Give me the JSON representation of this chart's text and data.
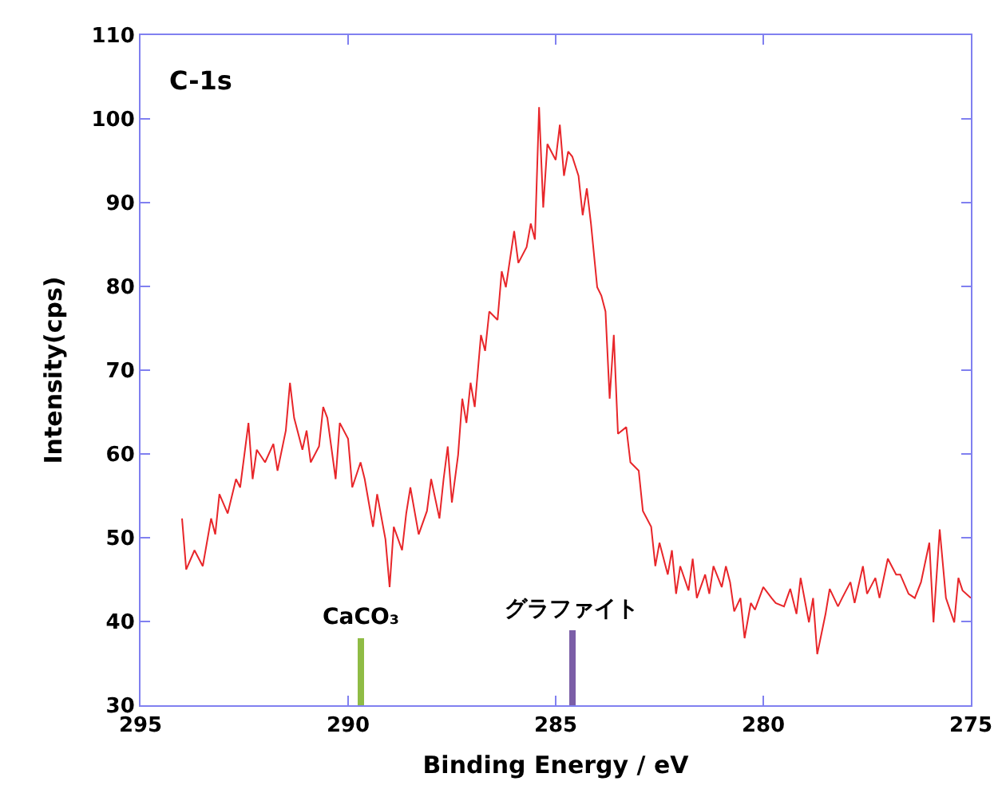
{
  "chart_data": {
    "type": "line",
    "title": "C-1s",
    "xlabel": "Binding Energy / eV",
    "ylabel": "Intensity(cps)",
    "xlim": [
      295,
      275
    ],
    "xticks": [
      295,
      290,
      285,
      280,
      275
    ],
    "ylim": [
      30,
      110
    ],
    "yticks": [
      30,
      40,
      50,
      60,
      70,
      80,
      90,
      100,
      110
    ],
    "grid": false,
    "legend": false,
    "marker": "none",
    "line_style": "solid",
    "series": [
      {
        "color": "#e8262a",
        "x": [
          294.0,
          293.9,
          293.7,
          293.5,
          293.3,
          293.2,
          293.1,
          292.9,
          292.7,
          292.6,
          292.4,
          292.3,
          292.2,
          292.0,
          291.8,
          291.7,
          291.5,
          291.4,
          291.3,
          291.1,
          291.0,
          290.9,
          290.7,
          290.6,
          290.5,
          290.3,
          290.2,
          290.0,
          289.9,
          289.7,
          289.6,
          289.4,
          289.3,
          289.1,
          289.0,
          288.9,
          288.7,
          288.6,
          288.5,
          288.3,
          288.1,
          288.0,
          287.8,
          287.7,
          287.6,
          287.5,
          287.35,
          287.25,
          287.15,
          287.05,
          286.95,
          286.8,
          286.7,
          286.6,
          286.4,
          286.3,
          286.2,
          286.0,
          285.9,
          285.7,
          285.6,
          285.5,
          285.4,
          285.3,
          285.2,
          285.0,
          284.9,
          284.8,
          284.7,
          284.6,
          284.45,
          284.35,
          284.25,
          284.15,
          284.0,
          283.9,
          283.8,
          283.7,
          283.6,
          283.5,
          283.3,
          283.2,
          283.0,
          282.9,
          282.7,
          282.6,
          282.5,
          282.3,
          282.2,
          282.1,
          282.0,
          281.8,
          281.7,
          281.6,
          281.4,
          281.3,
          281.2,
          281.0,
          280.9,
          280.8,
          280.7,
          280.55,
          280.45,
          280.3,
          280.2,
          280.0,
          279.8,
          279.7,
          279.5,
          279.35,
          279.2,
          279.1,
          278.9,
          278.8,
          278.7,
          278.5,
          278.4,
          278.2,
          278.1,
          277.9,
          277.8,
          277.6,
          277.5,
          277.3,
          277.2,
          277.0,
          276.8,
          276.7,
          276.5,
          276.35,
          276.2,
          276.0,
          275.9,
          275.75,
          275.6,
          275.4,
          275.3,
          275.2,
          275.0
        ],
        "values": [
          52.3,
          46.2,
          48.5,
          46.6,
          52.3,
          50.4,
          55.2,
          52.9,
          57,
          56,
          63.7,
          57,
          60.5,
          59,
          61.2,
          58,
          62.8,
          68.5,
          64.3,
          60.5,
          62.8,
          59,
          60.9,
          65.6,
          64.3,
          57,
          63.7,
          61.8,
          56,
          59,
          57,
          51.3,
          55.2,
          49.8,
          44.1,
          51.3,
          48.5,
          52.9,
          56,
          50.4,
          53.2,
          57,
          52.3,
          57,
          60.9,
          54.2,
          59.9,
          66.6,
          63.7,
          68.5,
          65.6,
          74.2,
          72.3,
          77,
          76,
          81.8,
          79.9,
          86.6,
          82.8,
          84.7,
          87.5,
          85.6,
          101.4,
          89.4,
          97,
          95.1,
          99.3,
          93.2,
          96.1,
          95.5,
          93.2,
          88.5,
          91.7,
          87.5,
          79.9,
          78.9,
          77,
          66.6,
          74.2,
          62.4,
          63.2,
          59,
          58,
          53.2,
          51.3,
          46.6,
          49.4,
          45.6,
          48.5,
          43.3,
          46.6,
          43.7,
          47.5,
          42.8,
          45.6,
          43.3,
          46.6,
          44.1,
          46.6,
          44.7,
          41.2,
          42.8,
          38,
          42.2,
          41.4,
          44.1,
          42.8,
          42.2,
          41.8,
          43.9,
          40.9,
          45.2,
          39.9,
          42.8,
          36.1,
          40.9,
          43.9,
          41.8,
          42.8,
          44.7,
          42.2,
          46.6,
          43.3,
          45.2,
          42.8,
          47.5,
          45.6,
          45.6,
          43.3,
          42.8,
          44.7,
          49.4,
          39.9,
          51,
          42.8,
          39.9,
          45.2,
          43.7,
          42.8
        ]
      },
      {
        "type": "bar",
        "name": "CaCO₃",
        "color": "#8fbc45",
        "x": [
          289.7
        ],
        "values": [
          38
        ]
      },
      {
        "type": "bar",
        "name": "グラファイト",
        "color": "#7b5ea7",
        "x": [
          284.6
        ],
        "values": [
          39
        ]
      }
    ]
  }
}
